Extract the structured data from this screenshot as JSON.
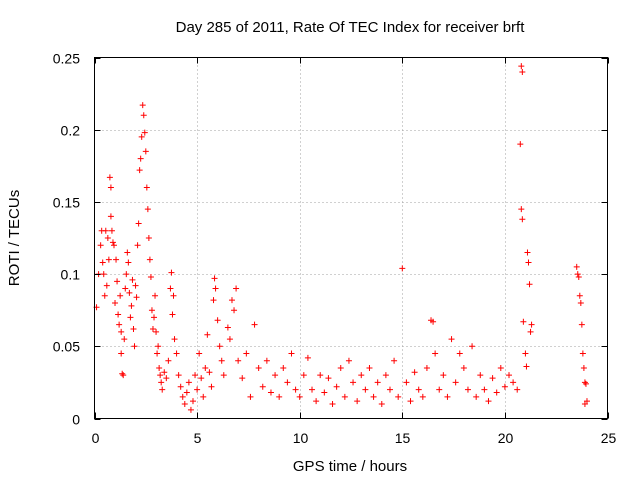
{
  "chart_data": {
    "type": "scatter",
    "title": "Day 285 of 2011, Rate Of TEC Index for receiver brft",
    "xlabel": "GPS time / hours",
    "ylabel": "ROTI / TECUs",
    "xlim": [
      0,
      25
    ],
    "ylim": [
      0,
      0.25
    ],
    "x_ticks": [
      0,
      5,
      10,
      15,
      20,
      25
    ],
    "x_tick_labels": [
      "0",
      "5",
      "10",
      "15",
      "20",
      "25"
    ],
    "y_ticks": [
      0,
      0.05,
      0.1,
      0.15,
      0.2,
      0.25
    ],
    "y_tick_labels": [
      "0",
      "0.05",
      "0.1",
      "0.15",
      "0.2",
      "0.25"
    ],
    "grid": true,
    "marker": "+",
    "color": "#ff0000",
    "series": [
      {
        "points": [
          [
            0.1,
            0.077
          ],
          [
            0.2,
            0.1
          ],
          [
            0.3,
            0.12
          ],
          [
            0.35,
            0.13
          ],
          [
            0.4,
            0.108
          ],
          [
            0.45,
            0.1
          ],
          [
            0.5,
            0.085
          ],
          [
            0.55,
            0.13
          ],
          [
            0.6,
            0.092
          ],
          [
            0.65,
            0.125
          ],
          [
            0.7,
            0.11
          ],
          [
            0.75,
            0.167
          ],
          [
            0.8,
            0.16
          ],
          [
            0.8,
            0.14
          ],
          [
            0.85,
            0.13
          ],
          [
            0.9,
            0.122
          ],
          [
            0.95,
            0.12
          ],
          [
            1.0,
            0.08
          ],
          [
            1.05,
            0.11
          ],
          [
            1.1,
            0.095
          ],
          [
            1.15,
            0.072
          ],
          [
            1.2,
            0.065
          ],
          [
            1.25,
            0.085
          ],
          [
            1.3,
            0.06
          ],
          [
            1.3,
            0.045
          ],
          [
            1.35,
            0.031
          ],
          [
            1.4,
            0.03
          ],
          [
            1.45,
            0.055
          ],
          [
            1.5,
            0.09
          ],
          [
            1.55,
            0.1
          ],
          [
            1.6,
            0.115
          ],
          [
            1.65,
            0.108
          ],
          [
            1.7,
            0.087
          ],
          [
            1.75,
            0.07
          ],
          [
            1.8,
            0.078
          ],
          [
            1.85,
            0.096
          ],
          [
            1.9,
            0.062
          ],
          [
            1.95,
            0.05
          ],
          [
            2.0,
            0.092
          ],
          [
            2.05,
            0.084
          ],
          [
            2.1,
            0.12
          ],
          [
            2.15,
            0.135
          ],
          [
            2.2,
            0.172
          ],
          [
            2.25,
            0.18
          ],
          [
            2.3,
            0.195
          ],
          [
            2.35,
            0.217
          ],
          [
            2.4,
            0.21
          ],
          [
            2.45,
            0.198
          ],
          [
            2.5,
            0.185
          ],
          [
            2.55,
            0.16
          ],
          [
            2.6,
            0.145
          ],
          [
            2.65,
            0.125
          ],
          [
            2.7,
            0.11
          ],
          [
            2.75,
            0.098
          ],
          [
            2.8,
            0.075
          ],
          [
            2.85,
            0.062
          ],
          [
            2.9,
            0.07
          ],
          [
            2.95,
            0.085
          ],
          [
            3.0,
            0.06
          ],
          [
            3.05,
            0.045
          ],
          [
            3.1,
            0.05
          ],
          [
            3.15,
            0.035
          ],
          [
            3.2,
            0.03
          ],
          [
            3.25,
            0.025
          ],
          [
            3.3,
            0.02
          ],
          [
            3.4,
            0.032
          ],
          [
            3.5,
            0.028
          ],
          [
            3.6,
            0.04
          ],
          [
            3.7,
            0.09
          ],
          [
            3.75,
            0.101
          ],
          [
            3.8,
            0.072
          ],
          [
            3.85,
            0.085
          ],
          [
            3.9,
            0.055
          ],
          [
            4.0,
            0.045
          ],
          [
            4.1,
            0.03
          ],
          [
            4.2,
            0.022
          ],
          [
            4.3,
            0.015
          ],
          [
            4.4,
            0.01
          ],
          [
            4.5,
            0.018
          ],
          [
            4.6,
            0.025
          ],
          [
            4.7,
            0.006
          ],
          [
            4.8,
            0.012
          ],
          [
            4.9,
            0.03
          ],
          [
            5.0,
            0.02
          ],
          [
            5.1,
            0.045
          ],
          [
            5.2,
            0.028
          ],
          [
            5.3,
            0.015
          ],
          [
            5.4,
            0.035
          ],
          [
            5.5,
            0.058
          ],
          [
            5.6,
            0.032
          ],
          [
            5.7,
            0.022
          ],
          [
            5.8,
            0.082
          ],
          [
            5.85,
            0.097
          ],
          [
            5.9,
            0.09
          ],
          [
            6.0,
            0.068
          ],
          [
            6.1,
            0.05
          ],
          [
            6.2,
            0.04
          ],
          [
            6.3,
            0.03
          ],
          [
            6.5,
            0.063
          ],
          [
            6.6,
            0.055
          ],
          [
            6.7,
            0.082
          ],
          [
            6.8,
            0.075
          ],
          [
            6.9,
            0.09
          ],
          [
            7.0,
            0.04
          ],
          [
            7.2,
            0.028
          ],
          [
            7.4,
            0.045
          ],
          [
            7.6,
            0.015
          ],
          [
            7.8,
            0.065
          ],
          [
            8.0,
            0.035
          ],
          [
            8.2,
            0.022
          ],
          [
            8.4,
            0.04
          ],
          [
            8.6,
            0.018
          ],
          [
            8.8,
            0.03
          ],
          [
            9.0,
            0.015
          ],
          [
            9.2,
            0.035
          ],
          [
            9.4,
            0.025
          ],
          [
            9.6,
            0.045
          ],
          [
            9.8,
            0.02
          ],
          [
            10.0,
            0.015
          ],
          [
            10.2,
            0.03
          ],
          [
            10.4,
            0.042
          ],
          [
            10.6,
            0.02
          ],
          [
            10.8,
            0.012
          ],
          [
            11.0,
            0.03
          ],
          [
            11.2,
            0.018
          ],
          [
            11.4,
            0.028
          ],
          [
            11.6,
            0.01
          ],
          [
            11.8,
            0.022
          ],
          [
            12.0,
            0.035
          ],
          [
            12.2,
            0.015
          ],
          [
            12.4,
            0.04
          ],
          [
            12.6,
            0.025
          ],
          [
            12.8,
            0.012
          ],
          [
            13.0,
            0.03
          ],
          [
            13.2,
            0.02
          ],
          [
            13.4,
            0.035
          ],
          [
            13.6,
            0.015
          ],
          [
            13.8,
            0.025
          ],
          [
            14.0,
            0.01
          ],
          [
            14.2,
            0.03
          ],
          [
            14.4,
            0.02
          ],
          [
            14.6,
            0.04
          ],
          [
            14.8,
            0.015
          ],
          [
            15.0,
            0.104
          ],
          [
            15.2,
            0.025
          ],
          [
            15.4,
            0.012
          ],
          [
            15.6,
            0.032
          ],
          [
            15.8,
            0.02
          ],
          [
            16.0,
            0.015
          ],
          [
            16.2,
            0.035
          ],
          [
            16.4,
            0.068
          ],
          [
            16.5,
            0.067
          ],
          [
            16.6,
            0.045
          ],
          [
            16.8,
            0.02
          ],
          [
            17.0,
            0.03
          ],
          [
            17.2,
            0.015
          ],
          [
            17.4,
            0.055
          ],
          [
            17.6,
            0.025
          ],
          [
            17.8,
            0.045
          ],
          [
            18.0,
            0.035
          ],
          [
            18.2,
            0.02
          ],
          [
            18.4,
            0.05
          ],
          [
            18.6,
            0.015
          ],
          [
            18.8,
            0.03
          ],
          [
            19.0,
            0.02
          ],
          [
            19.2,
            0.012
          ],
          [
            19.4,
            0.028
          ],
          [
            19.6,
            0.018
          ],
          [
            19.8,
            0.035
          ],
          [
            20.0,
            0.022
          ],
          [
            20.2,
            0.03
          ],
          [
            20.4,
            0.025
          ],
          [
            20.6,
            0.02
          ],
          [
            20.75,
            0.19
          ],
          [
            20.8,
            0.244
          ],
          [
            20.85,
            0.24
          ],
          [
            20.8,
            0.145
          ],
          [
            20.85,
            0.138
          ],
          [
            20.9,
            0.067
          ],
          [
            21.0,
            0.045
          ],
          [
            21.05,
            0.036
          ],
          [
            21.1,
            0.115
          ],
          [
            21.15,
            0.108
          ],
          [
            21.2,
            0.093
          ],
          [
            21.25,
            0.06
          ],
          [
            21.3,
            0.065
          ],
          [
            23.5,
            0.105
          ],
          [
            23.55,
            0.1
          ],
          [
            23.6,
            0.098
          ],
          [
            23.65,
            0.085
          ],
          [
            23.7,
            0.08
          ],
          [
            23.75,
            0.065
          ],
          [
            23.8,
            0.045
          ],
          [
            23.85,
            0.035
          ],
          [
            23.9,
            0.025
          ],
          [
            23.95,
            0.024
          ],
          [
            24.0,
            0.012
          ],
          [
            23.9,
            0.01
          ]
        ]
      }
    ]
  }
}
